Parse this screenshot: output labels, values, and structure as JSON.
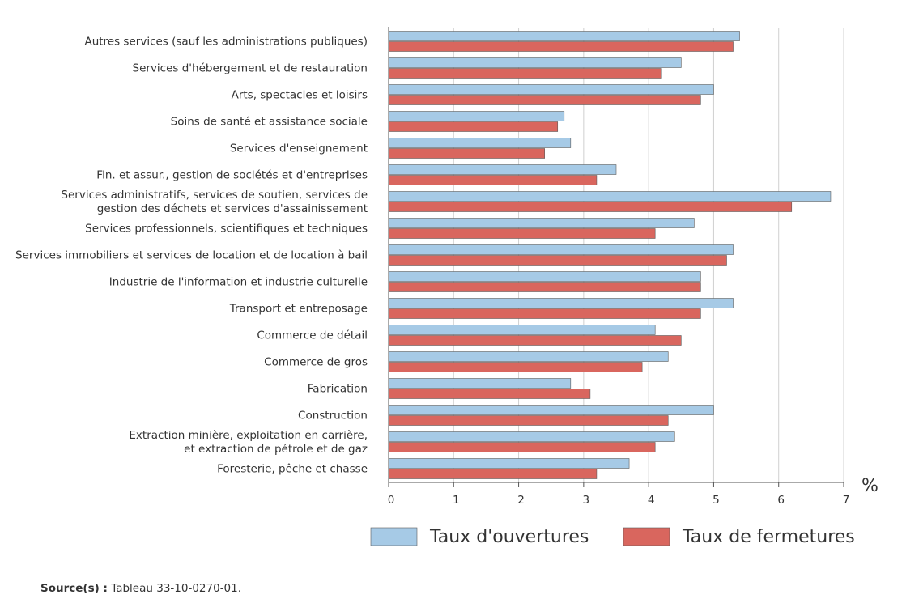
{
  "chart_data": {
    "type": "hbar",
    "categories": [
      "Autres services (sauf les administrations publiques)",
      "Services d'hébergement et de restauration",
      "Arts, spectacles et loisirs",
      "Soins de santé et assistance sociale",
      "Services d'enseignement",
      "Fin. et assur., gestion de sociétés et d'entreprises",
      [
        "Services administratifs, services de soutien, services de",
        "gestion des déchets et services d'assainissement"
      ],
      "Services professionnels, scientifiques et techniques",
      "Services immobiliers et services de location et de location à bail",
      "Industrie de l'information et industrie culturelle",
      "Transport et entreposage",
      "Commerce de détail",
      "Commerce de gros",
      "Fabrication",
      "Construction",
      [
        "Extraction minière, exploitation en carrière,",
        "et extraction de pétrole et de gaz"
      ],
      "Foresterie, pêche et chasse"
    ],
    "series": [
      {
        "name": "Taux d'ouvertures",
        "color": "#a6cae6",
        "values": [
          5.4,
          4.5,
          5.0,
          2.7,
          2.8,
          3.5,
          6.8,
          4.7,
          5.3,
          4.8,
          5.3,
          4.1,
          4.3,
          2.8,
          5.0,
          4.4,
          3.7
        ]
      },
      {
        "name": "Taux de fermetures",
        "color": "#d9665e",
        "values": [
          5.3,
          4.2,
          4.8,
          2.6,
          2.4,
          3.2,
          6.2,
          4.1,
          5.2,
          4.8,
          4.8,
          4.5,
          3.9,
          3.1,
          4.3,
          4.1,
          3.2
        ]
      }
    ],
    "xlim": [
      0,
      7
    ],
    "xticks": [
      0,
      1,
      2,
      3,
      4,
      5,
      6,
      7
    ],
    "x_unit": "%",
    "grid": true
  },
  "source": {
    "label": "Source(s) :",
    "text": "Tableau 33-10-0270-01."
  }
}
